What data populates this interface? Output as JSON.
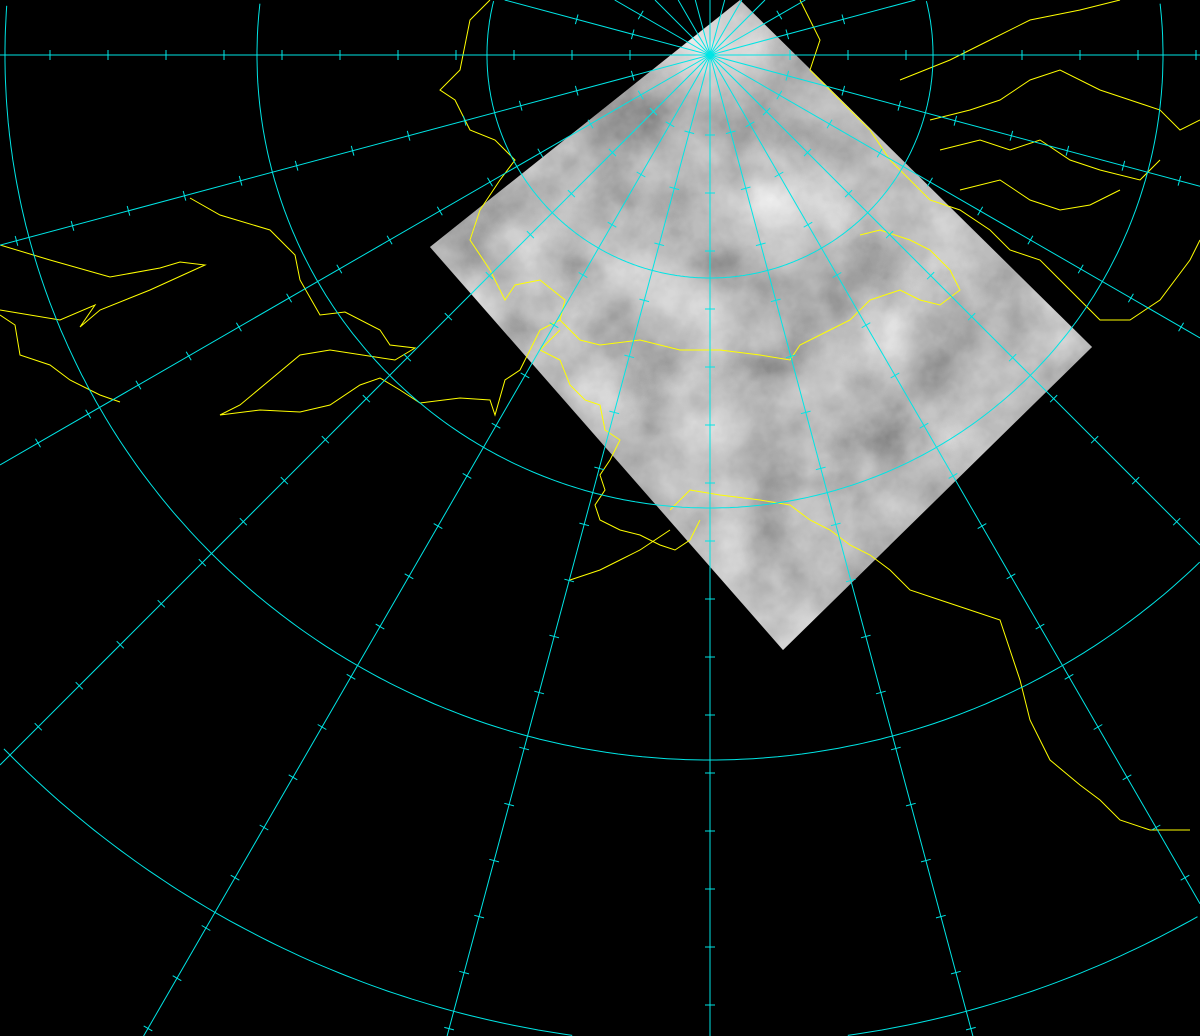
{
  "map": {
    "projection": "polar-stereographic",
    "meridian_spacing_deg": 15,
    "colors": {
      "background": "#000000",
      "graticule": "#00e5e5",
      "coastline": "#ffff00",
      "satellite_imagery": "#8a8a8a"
    },
    "layers": [
      "satellite-imagery",
      "coastlines",
      "graticule"
    ]
  }
}
